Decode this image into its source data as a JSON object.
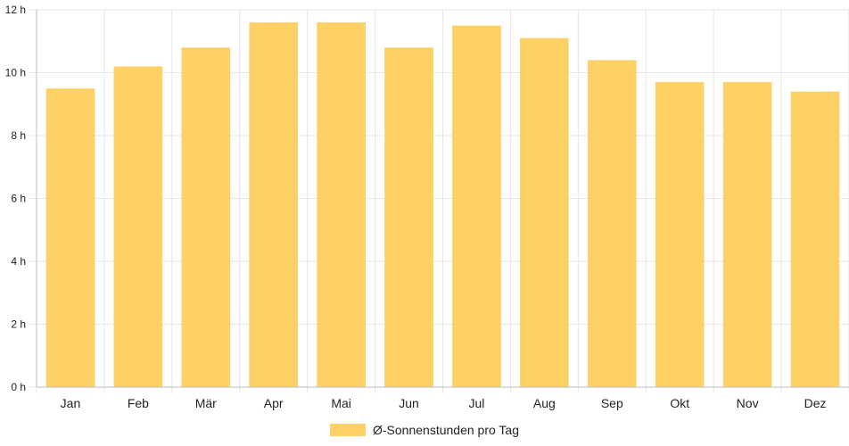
{
  "chart_data": {
    "type": "bar",
    "categories": [
      "Jan",
      "Feb",
      "Mär",
      "Apr",
      "Mai",
      "Jun",
      "Jul",
      "Aug",
      "Sep",
      "Okt",
      "Nov",
      "Dez"
    ],
    "series": [
      {
        "name": "Ø-Sonnenstunden pro Tag",
        "values": [
          9.5,
          10.2,
          10.8,
          11.6,
          11.6,
          10.8,
          11.5,
          11.1,
          10.4,
          9.7,
          9.7,
          9.4
        ]
      }
    ],
    "y_ticks": [
      "0 h",
      "2 h",
      "4 h",
      "6 h",
      "8 h",
      "10 h",
      "12 h"
    ],
    "ylim": [
      0,
      12
    ],
    "y_unit": "h",
    "grid": true,
    "legend_position": "bottom",
    "colors": {
      "bar": "#fdd166",
      "grid": "#e6e6e6",
      "axis": "#bdbdbd"
    }
  }
}
